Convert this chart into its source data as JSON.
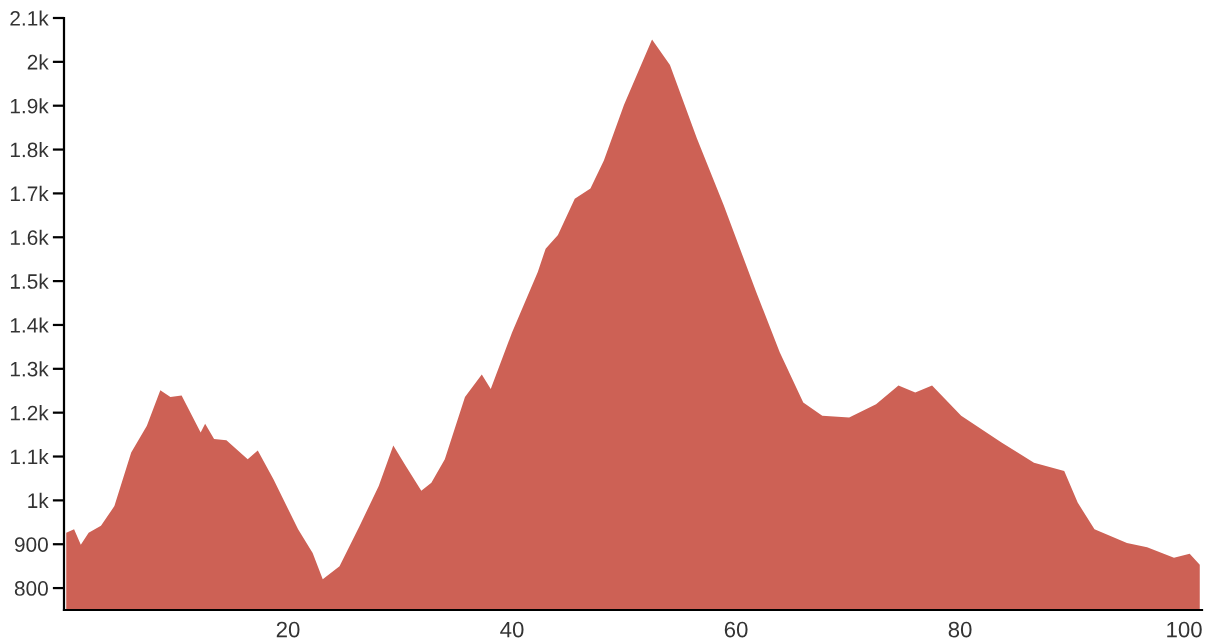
{
  "chart_data": {
    "type": "area",
    "x": [
      0.2,
      0.9,
      1.5,
      2.2,
      3.3,
      4.5,
      6.0,
      7.4,
      8.6,
      9.5,
      10.5,
      12.2,
      12.6,
      13.4,
      14.5,
      16.4,
      17.3,
      18.7,
      20.9,
      22.2,
      23.1,
      24.6,
      26.4,
      28.1,
      29.4,
      30.5,
      31.9,
      32.8,
      34.0,
      35.8,
      37.3,
      38.1,
      40.0,
      42.3,
      43.0,
      44.1,
      45.6,
      47.0,
      48.2,
      50.0,
      52.5,
      54.1,
      56.5,
      58.9,
      61.8,
      63.9,
      66.0,
      67.7,
      70.1,
      72.5,
      74.5,
      76.0,
      77.5,
      80.1,
      83.7,
      86.6,
      89.3,
      90.5,
      92.0,
      94.9,
      96.7,
      99.1,
      100.5,
      101.4
    ],
    "series": [
      {
        "color": "#cd6155",
        "values": [
          926,
          934,
          899,
          926,
          942,
          987,
          1109,
          1170,
          1251,
          1236,
          1239,
          1155,
          1175,
          1140,
          1137,
          1094,
          1114,
          1048,
          934,
          880,
          820,
          850,
          942,
          1033,
          1125,
          1079,
          1022,
          1040,
          1094,
          1236,
          1287,
          1254,
          1383,
          1521,
          1574,
          1605,
          1688,
          1711,
          1775,
          1902,
          2051,
          1993,
          1826,
          1673,
          1475,
          1338,
          1223,
          1193,
          1189,
          1219,
          1262,
          1246,
          1262,
          1193,
          1132,
          1086,
          1067,
          995,
          934,
          903,
          893,
          869,
          878,
          853
        ]
      }
    ],
    "xlim": [
      0,
      101.6
    ],
    "ylim": [
      750,
      2100
    ],
    "xticks": [
      20,
      40,
      60,
      80,
      100
    ],
    "yticks": [
      {
        "value": 800,
        "label": "800"
      },
      {
        "value": 900,
        "label": "900"
      },
      {
        "value": 1000,
        "label": "1k"
      },
      {
        "value": 1100,
        "label": "1.1k"
      },
      {
        "value": 1200,
        "label": "1.2k"
      },
      {
        "value": 1300,
        "label": "1.3k"
      },
      {
        "value": 1400,
        "label": "1.4k"
      },
      {
        "value": 1500,
        "label": "1.5k"
      },
      {
        "value": 1600,
        "label": "1.6k"
      },
      {
        "value": 1700,
        "label": "1.7k"
      },
      {
        "value": 1800,
        "label": "1.8k"
      },
      {
        "value": 1900,
        "label": "1.9k"
      },
      {
        "value": 2000,
        "label": "2k"
      },
      {
        "value": 2100,
        "label": "2.1k"
      }
    ],
    "grid": false,
    "legend": false
  }
}
